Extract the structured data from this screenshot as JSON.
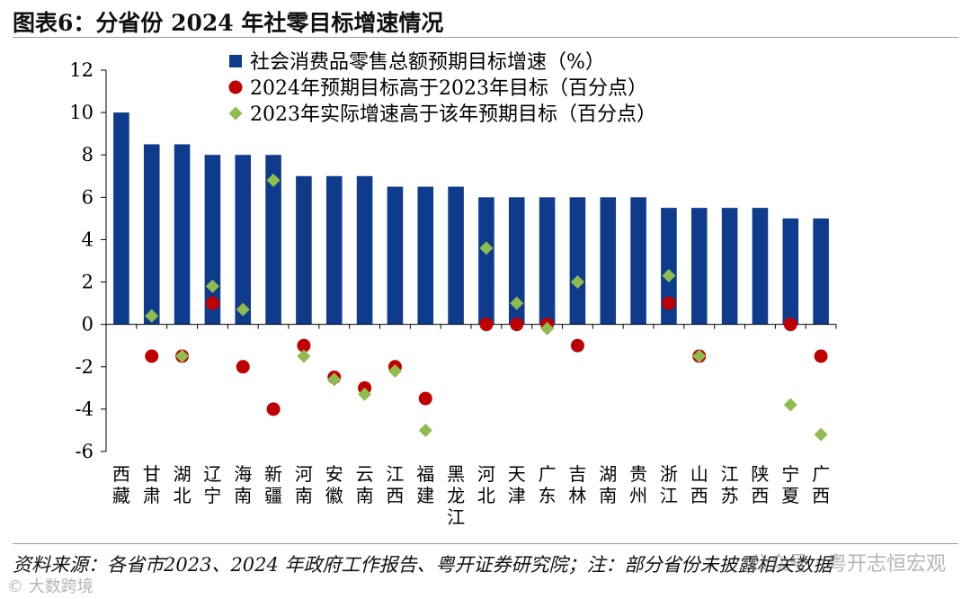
{
  "figure": {
    "title": "图表6：分省份 2024 年社零目标增速情况",
    "source": "资料来源：各省市2023、2024 年政府工作报告、粤开证券研究院；注：部分省份未披露相关数据",
    "watermark_right": "公众号 · 粤开志恒宏观",
    "watermark_left": "© 大数跨境"
  },
  "colors": {
    "bar": "#0f3b8c",
    "dot": "#c00000",
    "diamond": "#8fbc4f",
    "axis": "#000000"
  },
  "chart_data": {
    "type": "bar",
    "title": "",
    "xlabel": "",
    "ylabel": "",
    "ylim": [
      -6,
      12
    ],
    "yticks": [
      -6,
      -4,
      -2,
      0,
      2,
      4,
      6,
      8,
      10,
      12
    ],
    "grid": false,
    "legend_position": "top-right",
    "categories": [
      "西藏",
      "甘肃",
      "湖北",
      "辽宁",
      "海南",
      "新疆",
      "河南",
      "安徽",
      "云南",
      "江西",
      "福建",
      "黑龙江",
      "河北",
      "天津",
      "广东",
      "吉林",
      "湖南",
      "贵州",
      "浙江",
      "山西",
      "江苏",
      "陕西",
      "宁夏",
      "广西"
    ],
    "series": [
      {
        "name": "社会消费品零售总额预期目标增速（%）",
        "marker": "bar",
        "values": [
          10,
          8.5,
          8.5,
          8,
          8,
          8,
          7,
          7,
          7,
          6.5,
          6.5,
          6.5,
          6,
          6,
          6,
          6,
          6,
          6,
          5.5,
          5.5,
          5.5,
          5.5,
          5,
          5
        ]
      },
      {
        "name": "2024年预期目标高于2023年目标（百分点）",
        "marker": "circle",
        "values": [
          null,
          -1.5,
          -1.5,
          1,
          -2,
          -4,
          -1,
          -2.5,
          -3,
          -2,
          -3.5,
          null,
          0,
          0,
          0,
          -1,
          null,
          null,
          1,
          -1.5,
          null,
          null,
          0,
          -1.5
        ]
      },
      {
        "name": "2023年实际增速高于该年预期目标（百分点）",
        "marker": "diamond",
        "values": [
          null,
          0.4,
          -1.5,
          1.8,
          0.7,
          6.8,
          -1.5,
          -2.6,
          -3.3,
          -2.2,
          -5,
          null,
          3.6,
          1,
          -0.2,
          2,
          null,
          null,
          2.3,
          -1.5,
          null,
          null,
          -3.8,
          -5.2
        ]
      }
    ]
  }
}
